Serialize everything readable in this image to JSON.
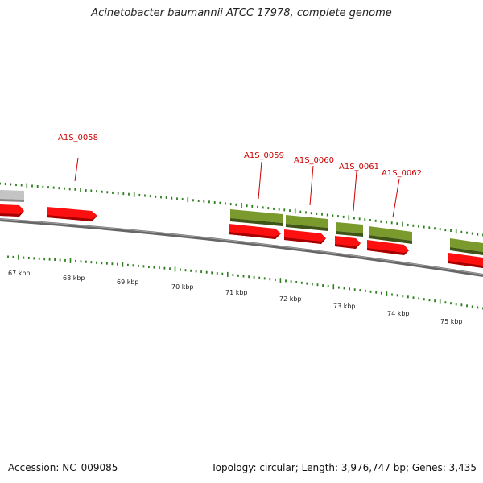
{
  "title": "Acinetobacter baumannii ATCC 17978, complete genome",
  "accession_text": "Accession: NC_009085",
  "summary_text": "Topology: circular; Length: 3,976,747 bp; Genes: 3,435",
  "colors": {
    "backbone": "#777777",
    "cds": "#ff0000",
    "gene": "#6b8e23",
    "other": "#bbbbbb",
    "label": "#cc0000",
    "ticks": "#2e7d1f"
  },
  "kbp_labels": [
    "67 kbp",
    "68 kbp",
    "69 kbp",
    "70 kbp",
    "71 kbp",
    "72 kbp",
    "73 kbp",
    "74 kbp",
    "75 kbp"
  ],
  "gene_labels": [
    "A1S_0058",
    "A1S_0059",
    "A1S_0060",
    "A1S_0061",
    "A1S_0062"
  ]
}
